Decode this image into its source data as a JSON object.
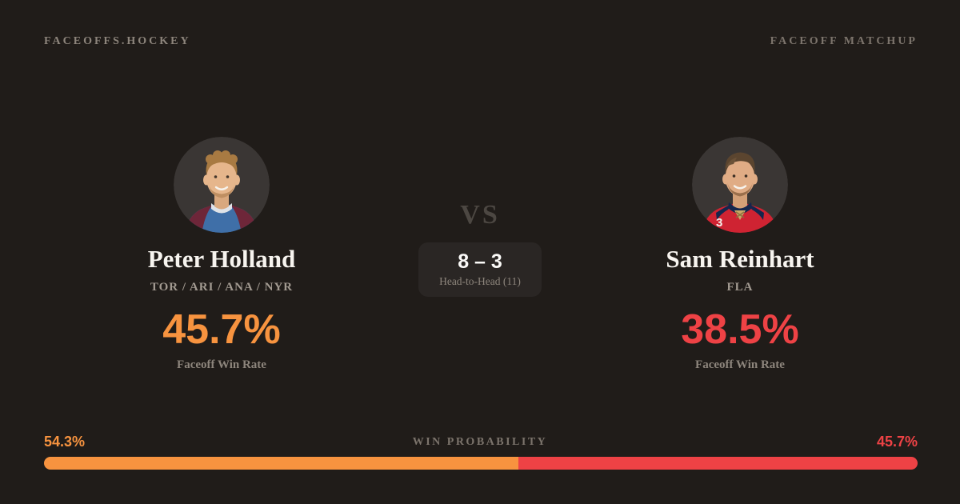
{
  "theme": {
    "bg": "#201c19",
    "accent_orange": "#f7933f",
    "accent_red": "#ee4245",
    "text_primary": "#f7f4ef",
    "text_soft": "#a29a91",
    "text_muted": "#8d857c",
    "text_dim": "#7c746c",
    "vs_color": "#4c4742",
    "pill_bg": "#2a2624",
    "avatar_bg": "#3a3634"
  },
  "header": {
    "brand": "FACEOFFS.HOCKEY",
    "page_label": "FACEOFF MATCHUP"
  },
  "players": {
    "left": {
      "name": "Peter Holland",
      "teams": "TOR / ARI / ANA / NYR",
      "win_rate": "45.7%",
      "win_rate_label": "Faceoff Win Rate",
      "accent": "#f7933f",
      "avatar_icon": "player-photo-peter-holland"
    },
    "right": {
      "name": "Sam Reinhart",
      "teams": "FLA",
      "win_rate": "38.5%",
      "win_rate_label": "Faceoff Win Rate",
      "accent": "#ee4245",
      "avatar_icon": "player-photo-sam-reinhart"
    }
  },
  "matchup": {
    "vs_label": "VS",
    "score": "8 – 3",
    "head_to_head_label": "Head-to-Head (11)"
  },
  "probability": {
    "label": "WIN PROBABILITY",
    "left_value": "54.3%",
    "right_value": "45.7%",
    "left_pct": 54.3,
    "right_pct": 45.7
  }
}
